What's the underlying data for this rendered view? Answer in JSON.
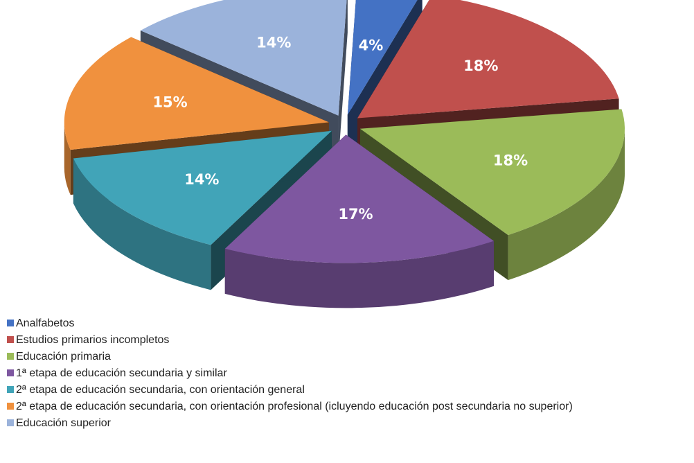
{
  "chart_data": {
    "type": "pie",
    "is_3d": true,
    "exploded": true,
    "legend_position": "bottom",
    "unit": "%",
    "slices": [
      {
        "label": "Analfabetos",
        "value": 4,
        "display": "4%",
        "color": "#4472c4"
      },
      {
        "label": "Estudios primarios incompletos",
        "value": 18,
        "display": "18%",
        "color": "#c0504d"
      },
      {
        "label": "Educación primaria",
        "value": 18,
        "display": "18%",
        "color": "#9bbb59"
      },
      {
        "label": "1ª etapa de educación secundaria y similar",
        "value": 17,
        "display": "17%",
        "color": "#7e57a0"
      },
      {
        "label": "2ª etapa de educación secundaria, con orientación general",
        "value": 14,
        "display": "14%",
        "color": "#41a4b8"
      },
      {
        "label": "2ª etapa de educación secundaria, con orientación profesional (icluyendo educación post secundaria no superior)",
        "value": 15,
        "display": "15%",
        "color": "#f0913e"
      },
      {
        "label": "Educación superior",
        "value": 14,
        "display": "14%",
        "color": "#9bb3db"
      }
    ]
  }
}
